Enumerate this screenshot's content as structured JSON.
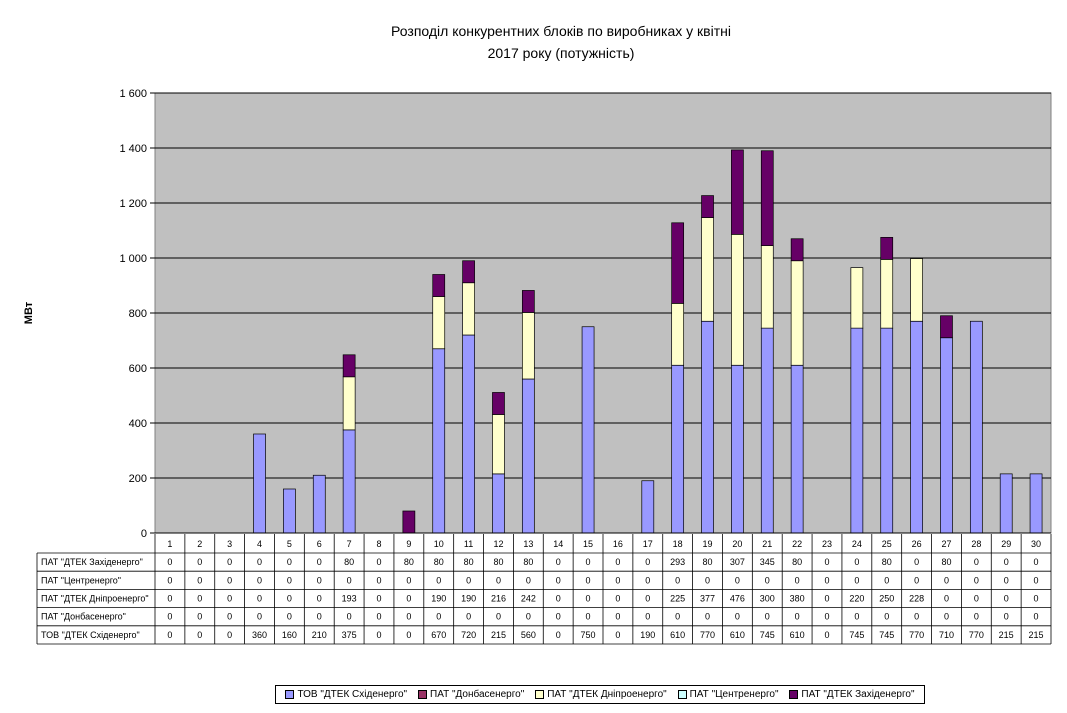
{
  "chart_data": {
    "type": "bar",
    "stacked": true,
    "title_line1": "Розподіл конкурентних блоків по виробниках у квітні",
    "title_line2": "2017 року (потужність)",
    "ylabel": "МВт",
    "ylim": [
      0,
      1600
    ],
    "yticks": [
      0,
      200,
      400,
      600,
      800,
      1000,
      1200,
      1400,
      1600
    ],
    "ytick_labels": [
      "0",
      "200",
      "400",
      "600",
      "800",
      "1 000",
      "1 200",
      "1 400",
      "1 600"
    ],
    "grid": true,
    "legend_position": "bottom",
    "categories": [
      "1",
      "2",
      "3",
      "4",
      "5",
      "6",
      "7",
      "8",
      "9",
      "10",
      "11",
      "12",
      "13",
      "14",
      "15",
      "16",
      "17",
      "18",
      "19",
      "20",
      "21",
      "22",
      "23",
      "24",
      "25",
      "26",
      "27",
      "28",
      "29",
      "30"
    ],
    "series": [
      {
        "name": "ТОВ \"ДТЕК Східенерго\"",
        "color": "#9999ff",
        "values": [
          0,
          0,
          0,
          360,
          160,
          210,
          375,
          0,
          0,
          670,
          720,
          215,
          560,
          0,
          750,
          0,
          190,
          610,
          770,
          610,
          745,
          610,
          0,
          745,
          745,
          770,
          710,
          770,
          215,
          215
        ]
      },
      {
        "name": "ПАТ \"Донбасенерго\"",
        "color": "#993366",
        "values": [
          0,
          0,
          0,
          0,
          0,
          0,
          0,
          0,
          0,
          0,
          0,
          0,
          0,
          0,
          0,
          0,
          0,
          0,
          0,
          0,
          0,
          0,
          0,
          0,
          0,
          0,
          0,
          0,
          0,
          0
        ]
      },
      {
        "name": "ПАТ \"ДТЕК Дніпроенерго\"",
        "color": "#ffffcc",
        "values": [
          0,
          0,
          0,
          0,
          0,
          0,
          193,
          0,
          0,
          190,
          190,
          216,
          242,
          0,
          0,
          0,
          0,
          225,
          377,
          476,
          300,
          380,
          0,
          220,
          250,
          228,
          0,
          0,
          0,
          0
        ]
      },
      {
        "name": "ПАТ \"Центренерго\"",
        "color": "#ccffff",
        "values": [
          0,
          0,
          0,
          0,
          0,
          0,
          0,
          0,
          0,
          0,
          0,
          0,
          0,
          0,
          0,
          0,
          0,
          0,
          0,
          0,
          0,
          0,
          0,
          0,
          0,
          0,
          0,
          0,
          0,
          0
        ]
      },
      {
        "name": "ПАТ \"ДТЕК Західенерго\"",
        "color": "#660066",
        "values": [
          0,
          0,
          0,
          0,
          0,
          0,
          80,
          0,
          80,
          80,
          80,
          80,
          80,
          0,
          0,
          0,
          0,
          293,
          80,
          307,
          345,
          80,
          0,
          0,
          80,
          0,
          80,
          0,
          0,
          0
        ]
      }
    ],
    "table_row_order": [
      4,
      3,
      2,
      1,
      0
    ],
    "plot_background": "#c0c0c0"
  }
}
